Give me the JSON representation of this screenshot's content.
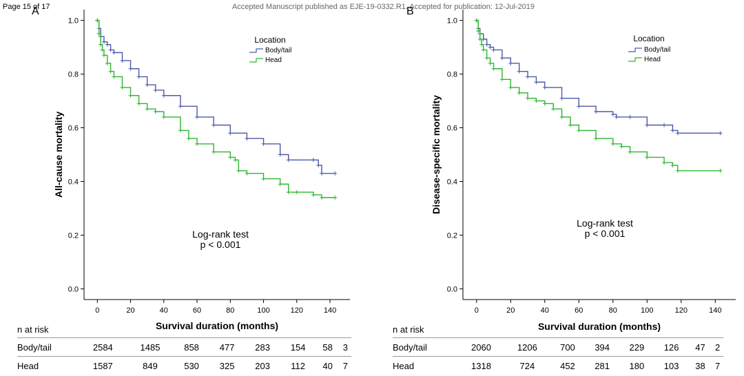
{
  "header": {
    "page_number": "Page 15 of 17",
    "manuscript_notice": "Accepted Manuscript published as EJE-19-0332.R1. Accepted for publication: 12-Jul-2019"
  },
  "colors": {
    "body_tail": "#4a5aa8",
    "head": "#2db52d"
  },
  "chart_data": [
    {
      "panel": "A",
      "type": "line",
      "step": true,
      "ylabel": "All-cause mortality",
      "xlabel": "Survival duration (months)",
      "xlim": [
        -8,
        152
      ],
      "ylim": [
        -0.04,
        1.04
      ],
      "xticks": [
        "0",
        "20",
        "40",
        "60",
        "80",
        "100",
        "120",
        "140"
      ],
      "yticks": [
        "0.0",
        "0.2",
        "0.4",
        "0.6",
        "0.8",
        "1.0"
      ],
      "legend": {
        "title": "Location",
        "position": "top-right"
      },
      "annotation": [
        "Log-rank test",
        "p < 0.001"
      ],
      "series": [
        {
          "name": "Body/tail",
          "x": [
            0,
            1,
            2,
            4,
            6,
            8,
            10,
            15,
            20,
            25,
            30,
            35,
            40,
            50,
            60,
            70,
            80,
            90,
            100,
            110,
            115,
            130,
            133,
            135,
            143
          ],
          "y": [
            1.0,
            0.97,
            0.94,
            0.92,
            0.91,
            0.89,
            0.88,
            0.85,
            0.82,
            0.79,
            0.76,
            0.74,
            0.72,
            0.68,
            0.64,
            0.61,
            0.58,
            0.56,
            0.54,
            0.5,
            0.48,
            0.48,
            0.46,
            0.43,
            0.43
          ]
        },
        {
          "name": "Head",
          "x": [
            0,
            1,
            2,
            3,
            4,
            6,
            8,
            10,
            15,
            20,
            25,
            30,
            35,
            40,
            50,
            55,
            60,
            70,
            80,
            83,
            85,
            90,
            100,
            110,
            115,
            120,
            130,
            135,
            143
          ],
          "y": [
            1.0,
            0.95,
            0.91,
            0.89,
            0.87,
            0.84,
            0.81,
            0.79,
            0.75,
            0.72,
            0.69,
            0.67,
            0.66,
            0.64,
            0.59,
            0.56,
            0.54,
            0.51,
            0.49,
            0.48,
            0.44,
            0.43,
            0.41,
            0.39,
            0.36,
            0.36,
            0.35,
            0.34,
            0.34
          ]
        }
      ]
    },
    {
      "panel": "B",
      "type": "line",
      "step": true,
      "ylabel": "Disease-specific mortality",
      "xlabel": "Survival duration (months)",
      "xlim": [
        -8,
        152
      ],
      "ylim": [
        -0.04,
        1.04
      ],
      "xticks": [
        "0",
        "20",
        "40",
        "60",
        "80",
        "100",
        "120",
        "140"
      ],
      "yticks": [
        "0.0",
        "0.2",
        "0.4",
        "0.6",
        "0.8",
        "1.0"
      ],
      "legend": {
        "title": "Location",
        "position": "top-right"
      },
      "annotation": [
        "Log-rank test",
        "p < 0.001"
      ],
      "series": [
        {
          "name": "Body/tail",
          "x": [
            0,
            1,
            2,
            4,
            6,
            8,
            10,
            15,
            20,
            25,
            30,
            35,
            40,
            50,
            60,
            70,
            80,
            82,
            90,
            100,
            110,
            115,
            118,
            143
          ],
          "y": [
            1.0,
            0.97,
            0.95,
            0.93,
            0.91,
            0.9,
            0.89,
            0.86,
            0.84,
            0.81,
            0.79,
            0.77,
            0.75,
            0.71,
            0.68,
            0.66,
            0.65,
            0.64,
            0.64,
            0.61,
            0.61,
            0.59,
            0.58,
            0.58
          ]
        },
        {
          "name": "Head",
          "x": [
            0,
            1,
            2,
            3,
            4,
            6,
            8,
            10,
            15,
            20,
            25,
            30,
            35,
            40,
            45,
            50,
            55,
            60,
            70,
            80,
            85,
            90,
            100,
            110,
            115,
            118,
            143
          ],
          "y": [
            1.0,
            0.96,
            0.93,
            0.91,
            0.89,
            0.86,
            0.84,
            0.82,
            0.78,
            0.75,
            0.73,
            0.71,
            0.7,
            0.69,
            0.67,
            0.64,
            0.61,
            0.59,
            0.56,
            0.54,
            0.53,
            0.51,
            0.49,
            0.47,
            0.46,
            0.44,
            0.44
          ]
        }
      ]
    }
  ],
  "risk_tables": [
    {
      "title": "n at risk",
      "rows": [
        {
          "label": "Body/tail",
          "values": [
            "2584",
            "1485",
            "858",
            "477",
            "283",
            "154",
            "58",
            "3"
          ]
        },
        {
          "label": "Head",
          "values": [
            "1587",
            "849",
            "530",
            "325",
            "203",
            "112",
            "40",
            "7"
          ]
        }
      ]
    },
    {
      "title": "n at risk",
      "rows": [
        {
          "label": "Body/tail",
          "values": [
            "2060",
            "1206",
            "700",
            "394",
            "229",
            "126",
            "47",
            "2"
          ]
        },
        {
          "label": "Head",
          "values": [
            "1318",
            "724",
            "452",
            "281",
            "180",
            "103",
            "38",
            "7"
          ]
        }
      ]
    }
  ]
}
